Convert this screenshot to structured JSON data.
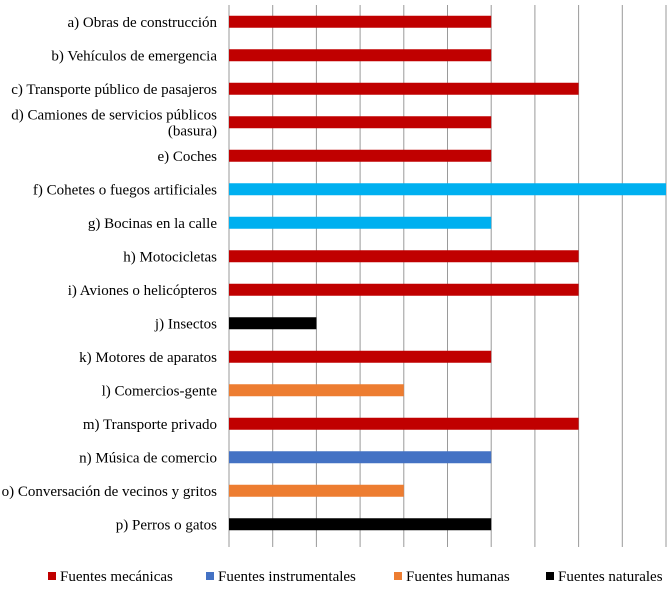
{
  "chart_data": {
    "type": "bar",
    "orientation": "horizontal",
    "title": "",
    "xlabel": "",
    "ylabel": "",
    "xlim": [
      0,
      100
    ],
    "grid": true,
    "legend_position": "bottom",
    "categories": [
      "a) Obras de construcción",
      "b) Vehículos de emergencia",
      "c) Transporte público de pasajeros",
      "d) Camiones de servicios públicos (basura)",
      "e) Coches",
      "f) Cohetes o fuegos artificiales",
      "g) Bocinas en la calle",
      "h) Motocicletas",
      "i) Aviones o helicópteros",
      "j) Insectos",
      "k) Motores de aparatos",
      "l) Comercios-gente",
      "m) Transporte privado",
      "n) Música de comercio",
      "o) Conversación de vecinos y gritos",
      "p) Perros o gatos"
    ],
    "label_lines": [
      [
        "a) Obras de construcción"
      ],
      [
        "b) Vehículos de emergencia"
      ],
      [
        "c) Transporte público de pasajeros"
      ],
      [
        "d) Camiones de servicios públicos",
        "(basura)"
      ],
      [
        "e) Coches"
      ],
      [
        "f) Cohetes o fuegos artificiales"
      ],
      [
        "g) Bocinas en la calle"
      ],
      [
        "h) Motocicletas"
      ],
      [
        "i) Aviones o helicópteros"
      ],
      [
        "j) Insectos"
      ],
      [
        "k) Motores de aparatos"
      ],
      [
        "l) Comercios-gente"
      ],
      [
        "m) Transporte privado"
      ],
      [
        "n) Música de comercio"
      ],
      [
        "o) Conversación de vecinos y gritos"
      ],
      [
        "p) Perros o gatos"
      ]
    ],
    "values": [
      60,
      60,
      80,
      60,
      60,
      100,
      60,
      80,
      80,
      20,
      60,
      40,
      80,
      60,
      40,
      60
    ],
    "groups": [
      "mecanicas",
      "mecanicas",
      "mecanicas",
      "mecanicas",
      "mecanicas",
      "instrumentales",
      "instrumentales",
      "mecanicas",
      "mecanicas",
      "naturales",
      "mecanicas",
      "humanas",
      "mecanicas",
      "instrumentales",
      "humanas",
      "naturales"
    ],
    "series": [
      {
        "key": "mecanicas",
        "name": "Fuentes mecánicas",
        "color": "#C00000"
      },
      {
        "key": "instrumentales",
        "name": "Fuentes instrumentales",
        "color": "#4472C4"
      },
      {
        "key": "humanas",
        "name": "Fuentes humanas",
        "color": "#ED7D31"
      },
      {
        "key": "naturales",
        "name": "Fuentes naturales",
        "color": "#000000"
      }
    ],
    "bar_color_overrides": {
      "5": "#00B0F0",
      "6": "#00B0F0"
    }
  }
}
